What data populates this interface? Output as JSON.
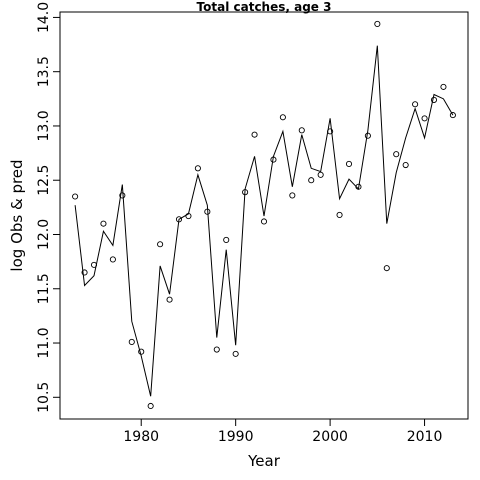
{
  "chart_data": {
    "type": "line",
    "title": "Total catches, age 3",
    "xlabel": "Year",
    "ylabel": "log Obs & pred",
    "xlim": [
      1971.4,
      2014.6
    ],
    "ylim": [
      10.3,
      14.05
    ],
    "x_ticks": [
      1980,
      1990,
      2000,
      2010
    ],
    "y_ticks": [
      10.5,
      11.0,
      11.5,
      12.0,
      12.5,
      13.0,
      13.5,
      14.0
    ],
    "y_tick_labels": [
      "10.5",
      "11.0",
      "11.5",
      "12.0",
      "12.5",
      "13.0",
      "13.5",
      "14.0"
    ],
    "grid": false,
    "series": [
      {
        "style": "points",
        "points": [
          [
            1973,
            12.35
          ],
          [
            1974,
            11.65
          ],
          [
            1975,
            11.72
          ],
          [
            1976,
            12.1
          ],
          [
            1977,
            11.77
          ],
          [
            1978,
            12.36
          ],
          [
            1979,
            11.01
          ],
          [
            1980,
            10.92
          ],
          [
            1981,
            10.42
          ],
          [
            1982,
            11.91
          ],
          [
            1983,
            11.4
          ],
          [
            1984,
            12.14
          ],
          [
            1985,
            12.17
          ],
          [
            1986,
            12.61
          ],
          [
            1987,
            12.21
          ],
          [
            1988,
            10.94
          ],
          [
            1989,
            11.95
          ],
          [
            1990,
            10.9
          ],
          [
            1991,
            12.39
          ],
          [
            1992,
            12.92
          ],
          [
            1993,
            12.12
          ],
          [
            1994,
            12.69
          ],
          [
            1995,
            13.08
          ],
          [
            1996,
            12.36
          ],
          [
            1997,
            12.96
          ],
          [
            1998,
            12.5
          ],
          [
            1999,
            12.55
          ],
          [
            2000,
            12.95
          ],
          [
            2001,
            12.18
          ],
          [
            2002,
            12.65
          ],
          [
            2003,
            12.44
          ],
          [
            2004,
            12.91
          ],
          [
            2005,
            13.94
          ],
          [
            2006,
            11.69
          ],
          [
            2007,
            12.74
          ],
          [
            2008,
            12.64
          ],
          [
            2009,
            13.2
          ],
          [
            2010,
            13.07
          ],
          [
            2011,
            13.24
          ],
          [
            2012,
            13.36
          ],
          [
            2013,
            13.1
          ]
        ]
      },
      {
        "style": "line",
        "points": [
          [
            1973,
            12.27
          ],
          [
            1974,
            11.53
          ],
          [
            1975,
            11.62
          ],
          [
            1976,
            12.03
          ],
          [
            1977,
            11.9
          ],
          [
            1978,
            12.46
          ],
          [
            1979,
            11.2
          ],
          [
            1980,
            10.88
          ],
          [
            1981,
            10.51
          ],
          [
            1982,
            11.71
          ],
          [
            1983,
            11.45
          ],
          [
            1984,
            12.14
          ],
          [
            1985,
            12.19
          ],
          [
            1986,
            12.55
          ],
          [
            1987,
            12.27
          ],
          [
            1988,
            11.05
          ],
          [
            1989,
            11.86
          ],
          [
            1990,
            10.98
          ],
          [
            1991,
            12.42
          ],
          [
            1992,
            12.72
          ],
          [
            1993,
            12.17
          ],
          [
            1994,
            12.72
          ],
          [
            1995,
            12.95
          ],
          [
            1996,
            12.44
          ],
          [
            1997,
            12.92
          ],
          [
            1998,
            12.61
          ],
          [
            1999,
            12.58
          ],
          [
            2000,
            13.07
          ],
          [
            2001,
            12.33
          ],
          [
            2002,
            12.51
          ],
          [
            2003,
            12.42
          ],
          [
            2004,
            12.96
          ],
          [
            2005,
            13.74
          ],
          [
            2006,
            12.1
          ],
          [
            2007,
            12.57
          ],
          [
            2008,
            12.89
          ],
          [
            2009,
            13.16
          ],
          [
            2010,
            12.89
          ],
          [
            2011,
            13.29
          ],
          [
            2012,
            13.25
          ],
          [
            2013,
            13.1
          ]
        ]
      }
    ]
  }
}
